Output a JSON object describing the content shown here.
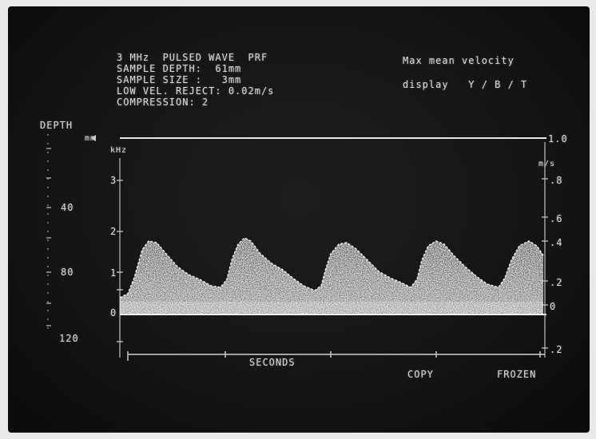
{
  "info": {
    "line1": "3 MHz  PULSED WAVE  PRF",
    "line2": "SAMPLE DEPTH:  61mm",
    "line3": "SAMPLE SIZE :   3mm",
    "line4": "LOW VEL. REJECT: 0.02m/s",
    "line5": "COMPRESSION: 2"
  },
  "right_info": {
    "title": "Max mean velocity",
    "display": "display   Y / B / T"
  },
  "depth_scale": {
    "title": "DEPTH",
    "unit": "mm",
    "labels": [
      "40",
      "80",
      "120"
    ]
  },
  "left_scale": {
    "unit": "kHz",
    "labels": [
      "3",
      "2",
      "1",
      "0"
    ]
  },
  "right_scale": {
    "unit": "m/s",
    "top_label": "1.0",
    "labels": [
      ".8",
      ".6",
      ".4",
      ".2",
      "0",
      ".2"
    ]
  },
  "bottom": {
    "axis_label": "SECONDS",
    "copy_label": "COPY",
    "frozen_label": "FROZEN"
  },
  "waveform": {
    "beats": 5,
    "peak_velocity_mps": 0.42
  },
  "colors": {
    "screen": "#141414",
    "trace": "#d8d8d8"
  }
}
